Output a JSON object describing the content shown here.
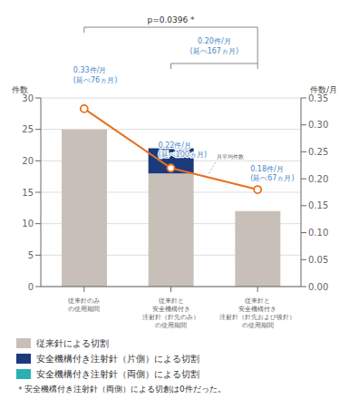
{
  "chart_data": {
    "type": "bar",
    "stacked": true,
    "grid": true,
    "legend": "bottom",
    "ylabel": "件数",
    "y2label": "件数/月",
    "categories": [
      "従来針のみ\nの使用期間",
      "従来針と\n安全機構付き\n注射針（針先のみ）\nの使用期間",
      "従来針と\n安全機構付き\n注射針（針先および後針）\nの使用期間"
    ],
    "ylim": [
      0,
      30
    ],
    "yticks": [
      0,
      5,
      10,
      15,
      20,
      25,
      30
    ],
    "y2lim": [
      0,
      0.35
    ],
    "y2ticks": [
      {
        "value": 0,
        "label": "0.00"
      },
      0.05,
      {
        "value": 0.1,
        "label": "0.10"
      },
      0.15,
      {
        "value": 0.2,
        "label": "0.20"
      },
      0.25,
      {
        "value": 0.3,
        "label": "0.30"
      },
      0.35
    ],
    "series": [
      {
        "name": "従来針による切割",
        "type": "bar",
        "color": "#c8c0b8",
        "values": [
          25,
          18,
          12
        ]
      },
      {
        "name": "安全機構付き注射針（片側）による切割",
        "type": "bar",
        "color": "#1a3a7c",
        "values": [
          0,
          4,
          0
        ]
      },
      {
        "name": "安全機構付き注射針（両側）による切割",
        "type": "bar",
        "color": "#2ab0b0",
        "values": [
          0,
          0,
          0
        ]
      },
      {
        "name": "月平均件数",
        "type": "line",
        "axis": "y2",
        "color": "#e87020",
        "marker": "circle",
        "values": [
          0.33,
          0.22,
          0.18
        ]
      }
    ],
    "annotations": [
      {
        "text": "0.33件/月\n(延べ76ヵ月)",
        "color": "#4a86c8"
      },
      {
        "text": "0.22件/月\n(延べ100ヵ月)",
        "color": "#4a86c8"
      },
      {
        "text": "0.18件/月\n(延べ67ヵ月)",
        "color": "#4a86c8"
      },
      {
        "text": "0.20件/月\n(延べ167ヵ月)",
        "color": "#4a86c8"
      },
      {
        "text": "p=0.0396 *"
      },
      {
        "text": "＊安全機構付き注射針（両側）による切創は0件だった。"
      }
    ]
  }
}
